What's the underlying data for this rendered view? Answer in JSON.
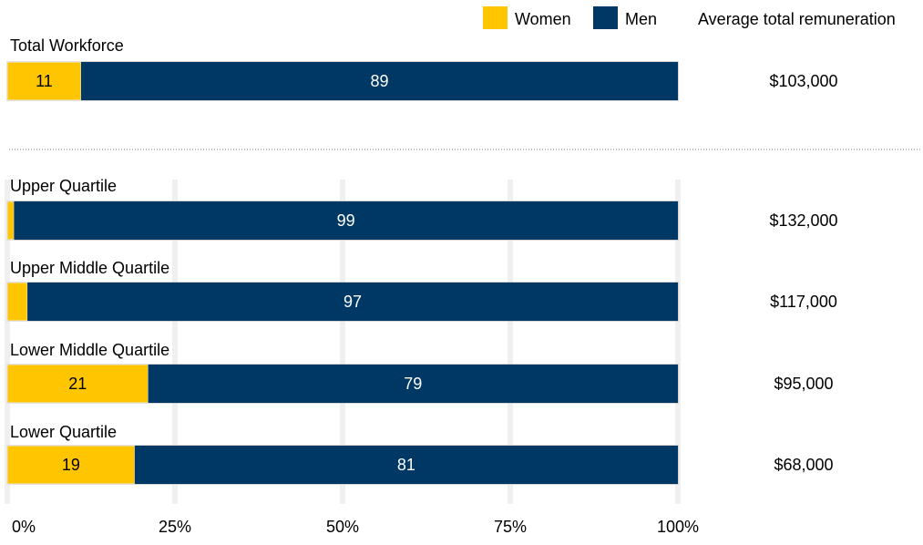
{
  "chart_data": {
    "type": "bar",
    "orientation": "horizontal",
    "stacked": true,
    "xlim": [
      0,
      100
    ],
    "x_ticks": [
      0,
      25,
      50,
      75,
      100
    ],
    "x_tick_labels": [
      "0%",
      "25%",
      "50%",
      "75%",
      "100%"
    ],
    "grid": true,
    "legend": {
      "placement": "top-right",
      "entries": [
        {
          "name": "Women",
          "color": "#FFC600"
        },
        {
          "name": "Men",
          "color": "#003865"
        }
      ]
    },
    "remuneration_header": "Average total remuneration",
    "categories": [
      "Total Workforce",
      "Upper Quartile",
      "Upper Middle Quartile",
      "Lower Middle Quartile",
      "Lower Quartile"
    ],
    "series": [
      {
        "name": "Women",
        "color": "#FFC600",
        "values": [
          11,
          1,
          3,
          21,
          19
        ],
        "labels": [
          "11",
          "",
          "",
          "21",
          "19"
        ]
      },
      {
        "name": "Men",
        "color": "#003865",
        "values": [
          89,
          99,
          97,
          79,
          81
        ],
        "labels": [
          "89",
          "99",
          "97",
          "79",
          "81"
        ]
      }
    ],
    "remuneration": [
      "$103,000",
      "$132,000",
      "$117,000",
      "$95,000",
      "$68,000"
    ],
    "separator_after": "Total Workforce"
  }
}
